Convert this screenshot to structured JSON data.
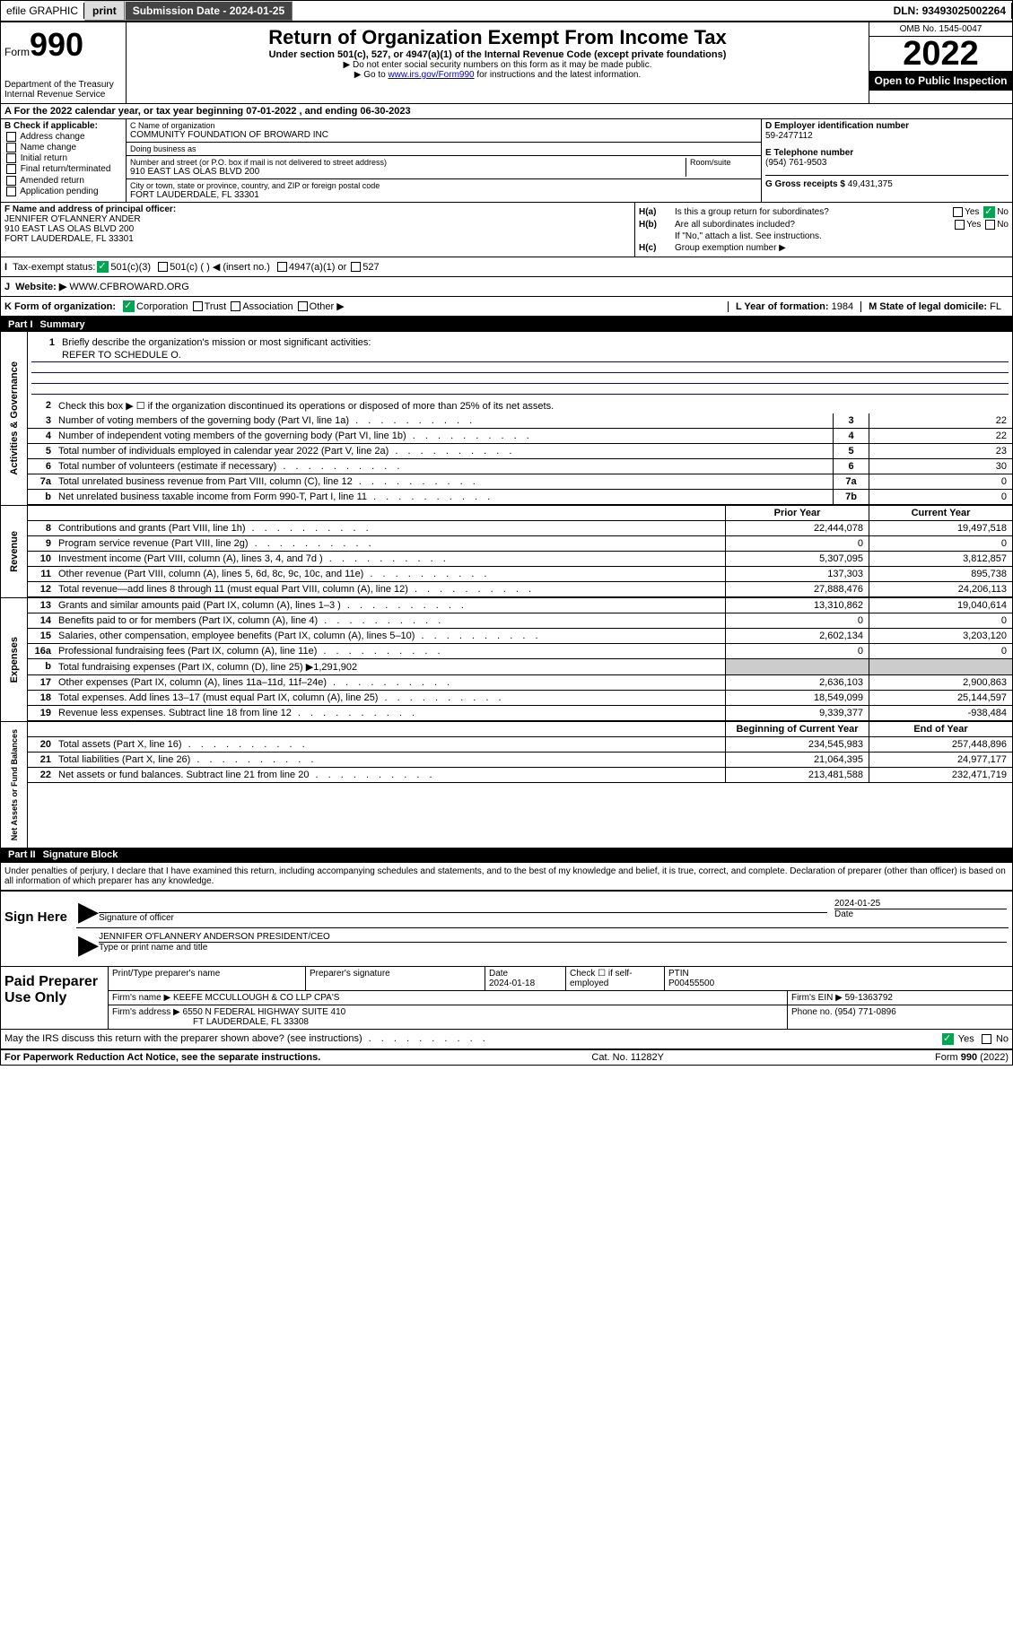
{
  "topbar": {
    "efile": "efile GRAPHIC",
    "print": "print",
    "submission_label": "Submission Date - ",
    "submission_date": "2024-01-25",
    "dln_label": "DLN: ",
    "dln": "93493025002264"
  },
  "header": {
    "form_label": "Form",
    "form_number": "990",
    "dept": "Department of the Treasury",
    "irs": "Internal Revenue Service",
    "title": "Return of Organization Exempt From Income Tax",
    "subtitle": "Under section 501(c), 527, or 4947(a)(1) of the Internal Revenue Code (except private foundations)",
    "note1": "▶ Do not enter social security numbers on this form as it may be made public.",
    "note2_pre": "▶ Go to ",
    "note2_link": "www.irs.gov/Form990",
    "note2_post": " for instructions and the latest information.",
    "omb": "OMB No. 1545-0047",
    "year": "2022",
    "open_public": "Open to Public Inspection"
  },
  "lineA": {
    "text_pre": "For the 2022 calendar year, or tax year beginning ",
    "begin": "07-01-2022",
    "mid": " , and ending ",
    "end": "06-30-2023"
  },
  "sectionB": {
    "label": "B Check if applicable:",
    "opts": [
      "Address change",
      "Name change",
      "Initial return",
      "Final return/terminated",
      "Amended return",
      "Application pending"
    ]
  },
  "sectionC": {
    "name_label": "C Name of organization",
    "name": "COMMUNITY FOUNDATION OF BROWARD INC",
    "dba_label": "Doing business as",
    "dba": "",
    "addr_label": "Number and street (or P.O. box if mail is not delivered to street address)",
    "room_label": "Room/suite",
    "addr": "910 EAST LAS OLAS BLVD 200",
    "city_label": "City or town, state or province, country, and ZIP or foreign postal code",
    "city": "FORT LAUDERDALE, FL  33301"
  },
  "sectionD": {
    "label": "D Employer identification number",
    "ein": "59-2477112"
  },
  "sectionE": {
    "label": "E Telephone number",
    "phone": "(954) 761-9503"
  },
  "sectionG": {
    "label": "G Gross receipts $ ",
    "amount": "49,431,375"
  },
  "sectionF": {
    "label": "F Name and address of principal officer:",
    "name": "JENNIFER O'FLANNERY ANDER",
    "addr1": "910 EAST LAS OLAS BLVD 200",
    "addr2": "FORT LAUDERDALE, FL  33301"
  },
  "sectionH": {
    "ha": "Is this a group return for subordinates?",
    "hb": "Are all subordinates included?",
    "hb_note": "If \"No,\" attach a list. See instructions.",
    "hc": "Group exemption number ▶",
    "yes": "Yes",
    "no": "No"
  },
  "lineI": {
    "label": "Tax-exempt status:",
    "opt1": "501(c)(3)",
    "opt2": "501(c) (  ) ◀ (insert no.)",
    "opt3": "4947(a)(1) or",
    "opt4": "527"
  },
  "lineJ": {
    "label": "Website: ▶",
    "url": "WWW.CFBROWARD.ORG"
  },
  "lineK": {
    "label": "K Form of organization:",
    "opts": [
      "Corporation",
      "Trust",
      "Association",
      "Other ▶"
    ]
  },
  "lineL": {
    "label": "L Year of formation: ",
    "year": "1984"
  },
  "lineM": {
    "label": "M State of legal domicile: ",
    "state": "FL"
  },
  "part1": {
    "num": "Part I",
    "title": "Summary",
    "line1": "Briefly describe the organization's mission or most significant activities:",
    "line1_val": "REFER TO SCHEDULE O.",
    "line2": "Check this box ▶ ☐  if the organization discontinued its operations or disposed of more than 25% of its net assets.",
    "sides": {
      "ag": "Activities & Governance",
      "rev": "Revenue",
      "exp": "Expenses",
      "na": "Net Assets or Fund Balances"
    },
    "lines_ag": [
      {
        "n": "3",
        "d": "Number of voting members of the governing body (Part VI, line 1a)",
        "b": "3",
        "v": "22"
      },
      {
        "n": "4",
        "d": "Number of independent voting members of the governing body (Part VI, line 1b)",
        "b": "4",
        "v": "22"
      },
      {
        "n": "5",
        "d": "Total number of individuals employed in calendar year 2022 (Part V, line 2a)",
        "b": "5",
        "v": "23"
      },
      {
        "n": "6",
        "d": "Total number of volunteers (estimate if necessary)",
        "b": "6",
        "v": "30"
      },
      {
        "n": "7a",
        "d": "Total unrelated business revenue from Part VIII, column (C), line 12",
        "b": "7a",
        "v": "0"
      },
      {
        "n": "b",
        "d": "Net unrelated business taxable income from Form 990-T, Part I, line 11",
        "b": "7b",
        "v": "0"
      }
    ],
    "prior_year": "Prior Year",
    "current_year": "Current Year",
    "lines_rev": [
      {
        "n": "8",
        "d": "Contributions and grants (Part VIII, line 1h)",
        "p": "22,444,078",
        "c": "19,497,518"
      },
      {
        "n": "9",
        "d": "Program service revenue (Part VIII, line 2g)",
        "p": "0",
        "c": "0"
      },
      {
        "n": "10",
        "d": "Investment income (Part VIII, column (A), lines 3, 4, and 7d )",
        "p": "5,307,095",
        "c": "3,812,857"
      },
      {
        "n": "11",
        "d": "Other revenue (Part VIII, column (A), lines 5, 6d, 8c, 9c, 10c, and 11e)",
        "p": "137,303",
        "c": "895,738"
      },
      {
        "n": "12",
        "d": "Total revenue—add lines 8 through 11 (must equal Part VIII, column (A), line 12)",
        "p": "27,888,476",
        "c": "24,206,113"
      }
    ],
    "lines_exp": [
      {
        "n": "13",
        "d": "Grants and similar amounts paid (Part IX, column (A), lines 1–3 )",
        "p": "13,310,862",
        "c": "19,040,614"
      },
      {
        "n": "14",
        "d": "Benefits paid to or for members (Part IX, column (A), line 4)",
        "p": "0",
        "c": "0"
      },
      {
        "n": "15",
        "d": "Salaries, other compensation, employee benefits (Part IX, column (A), lines 5–10)",
        "p": "2,602,134",
        "c": "3,203,120"
      },
      {
        "n": "16a",
        "d": "Professional fundraising fees (Part IX, column (A), line 11e)",
        "p": "0",
        "c": "0"
      },
      {
        "n": "b",
        "d": "Total fundraising expenses (Part IX, column (D), line 25) ▶1,291,902",
        "p": "",
        "c": "",
        "gray": true
      },
      {
        "n": "17",
        "d": "Other expenses (Part IX, column (A), lines 11a–11d, 11f–24e)",
        "p": "2,636,103",
        "c": "2,900,863"
      },
      {
        "n": "18",
        "d": "Total expenses. Add lines 13–17 (must equal Part IX, column (A), line 25)",
        "p": "18,549,099",
        "c": "25,144,597"
      },
      {
        "n": "19",
        "d": "Revenue less expenses. Subtract line 18 from line 12",
        "p": "9,339,377",
        "c": "-938,484"
      }
    ],
    "bocy": "Beginning of Current Year",
    "eoy": "End of Year",
    "lines_na": [
      {
        "n": "20",
        "d": "Total assets (Part X, line 16)",
        "p": "234,545,983",
        "c": "257,448,896"
      },
      {
        "n": "21",
        "d": "Total liabilities (Part X, line 26)",
        "p": "21,064,395",
        "c": "24,977,177"
      },
      {
        "n": "22",
        "d": "Net assets or fund balances. Subtract line 21 from line 20",
        "p": "213,481,588",
        "c": "232,471,719"
      }
    ]
  },
  "part2": {
    "num": "Part II",
    "title": "Signature Block",
    "penalties": "Under penalties of perjury, I declare that I have examined this return, including accompanying schedules and statements, and to the best of my knowledge and belief, it is true, correct, and complete. Declaration of preparer (other than officer) is based on all information of which preparer has any knowledge.",
    "sign_here": "Sign Here",
    "sig_officer": "Signature of officer",
    "sig_date": "2024-01-25",
    "date_lbl": "Date",
    "officer_name": "JENNIFER O'FLANNERY ANDERSON  PRESIDENT/CEO",
    "officer_lbl": "Type or print name and title",
    "paid": "Paid Preparer Use Only",
    "prep_name_lbl": "Print/Type preparer's name",
    "prep_sig_lbl": "Preparer's signature",
    "prep_date_lbl": "Date",
    "prep_date": "2024-01-18",
    "check_self": "Check ☐ if self-employed",
    "ptin_lbl": "PTIN",
    "ptin": "P00455500",
    "firm_name_lbl": "Firm's name    ▶ ",
    "firm_name": "KEEFE MCCULLOUGH & CO LLP CPA'S",
    "firm_ein_lbl": "Firm's EIN ▶ ",
    "firm_ein": "59-1363792",
    "firm_addr_lbl": "Firm's address ▶ ",
    "firm_addr1": "6550 N FEDERAL HIGHWAY SUITE 410",
    "firm_addr2": "FT LAUDERDALE, FL  33308",
    "phone_lbl": "Phone no. ",
    "phone": "(954) 771-0896",
    "may_discuss": "May the IRS discuss this return with the preparer shown above? (see instructions)",
    "yes": "Yes",
    "no": "No"
  },
  "footer": {
    "paperwork": "For Paperwork Reduction Act Notice, see the separate instructions.",
    "cat": "Cat. No. 11282Y",
    "form": "Form 990 (2022)"
  }
}
